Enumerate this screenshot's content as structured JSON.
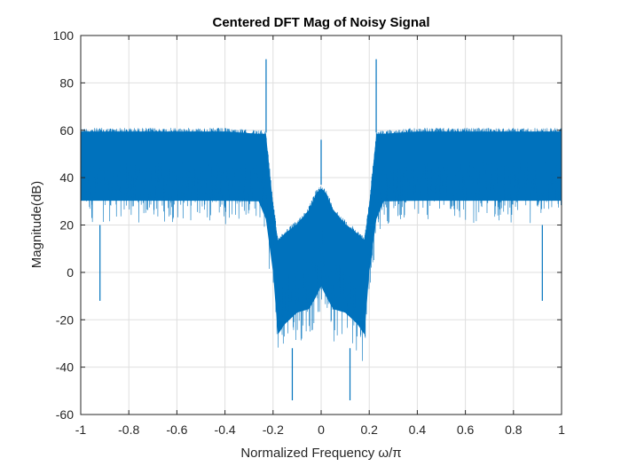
{
  "chart_data": {
    "type": "line",
    "title": "Centered DFT Mag of Noisy Signal",
    "xlabel": "Normalized Frequency ω/π",
    "ylabel": "Magnitude(dB)",
    "xlim": [
      -1,
      1
    ],
    "ylim": [
      -60,
      100
    ],
    "xticks": [
      -1,
      -0.8,
      -0.6,
      -0.4,
      -0.2,
      0,
      0.2,
      0.4,
      0.6,
      0.8,
      1
    ],
    "xtick_labels": [
      "-1",
      "-0.8",
      "-0.6",
      "-0.4",
      "-0.2",
      "0",
      "0.2",
      "0.4",
      "0.6",
      "0.8",
      "1"
    ],
    "yticks": [
      -60,
      -40,
      -20,
      0,
      20,
      40,
      60,
      80,
      100
    ],
    "ytick_labels": [
      "-60",
      "-40",
      "-20",
      "0",
      "20",
      "40",
      "60",
      "80",
      "100"
    ],
    "grid": true,
    "line_color": "#0072BD",
    "series": [
      {
        "envelope": {
          "x": [
            -1,
            -0.9,
            -0.8,
            -0.6,
            -0.4,
            -0.26,
            -0.23,
            -0.2,
            -0.18,
            -0.15,
            -0.1,
            -0.05,
            -0.02,
            0,
            0.02,
            0.05,
            0.1,
            0.15,
            0.18,
            0.2,
            0.23,
            0.26,
            0.4,
            0.6,
            0.8,
            0.9,
            1
          ],
          "upper": [
            61,
            61,
            61,
            61,
            61,
            60,
            60,
            30,
            15,
            18,
            22,
            28,
            35,
            37,
            35,
            28,
            22,
            18,
            15,
            30,
            60,
            60,
            61,
            61,
            61,
            61,
            61
          ],
          "lower": [
            20,
            20,
            20,
            20,
            20,
            20,
            10,
            -10,
            -40,
            -35,
            -30,
            -30,
            -25,
            -20,
            -25,
            -30,
            -30,
            -35,
            -40,
            -10,
            10,
            20,
            20,
            20,
            20,
            20,
            20
          ]
        },
        "spikes": [
          {
            "x": -0.229,
            "y": 90
          },
          {
            "x": 0.229,
            "y": 90
          },
          {
            "x": 0,
            "y": 56
          },
          {
            "x": -0.92,
            "y": -12
          },
          {
            "x": 0.92,
            "y": -12
          },
          {
            "x": -0.12,
            "y": -54
          },
          {
            "x": 0.12,
            "y": -54
          }
        ]
      }
    ]
  }
}
